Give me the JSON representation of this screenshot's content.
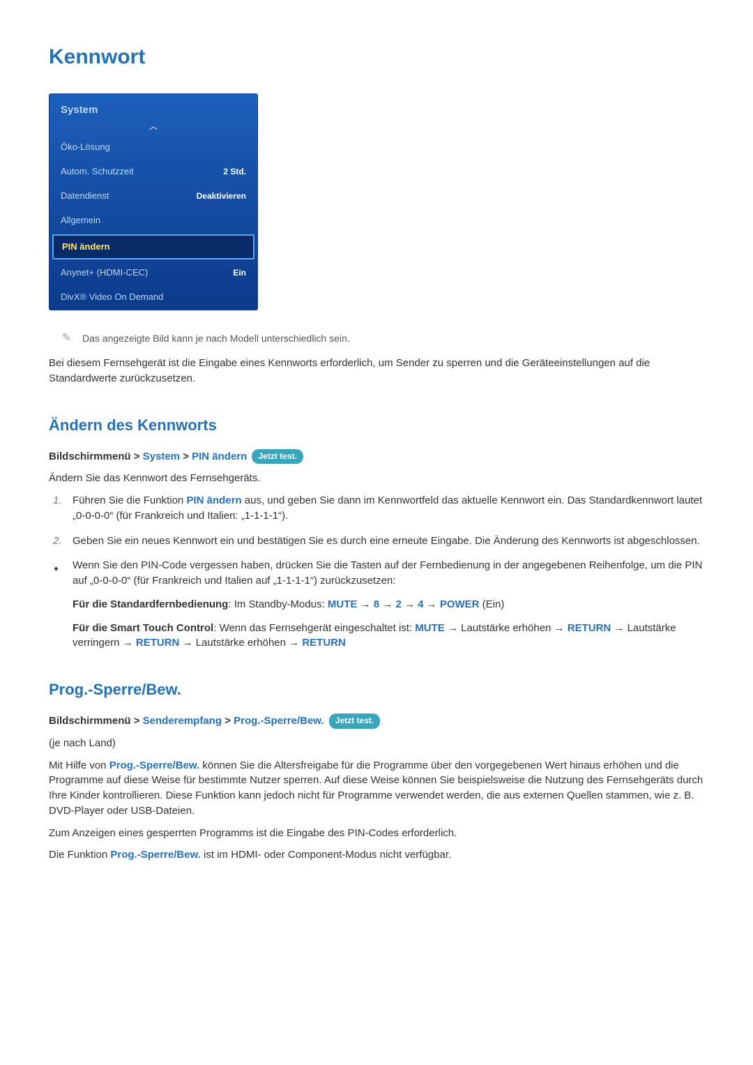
{
  "title": "Kennwort",
  "menu": {
    "header": "System",
    "rows": [
      {
        "label": "Öko-Lösung",
        "value": "",
        "selected": false
      },
      {
        "label": "Autom. Schutzzeit",
        "value": "2 Std.",
        "selected": false
      },
      {
        "label": "Datendienst",
        "value": "Deaktivieren",
        "selected": false
      },
      {
        "label": "Allgemein",
        "value": "",
        "selected": false
      },
      {
        "label": "PIN ändern",
        "value": "",
        "selected": true
      },
      {
        "label": "Anynet+ (HDMI-CEC)",
        "value": "Ein",
        "selected": false
      },
      {
        "label": "DivX® Video On Demand",
        "value": "",
        "selected": false
      }
    ]
  },
  "note_image": "Das angezeigte Bild kann je nach Modell unterschiedlich sein.",
  "intro_para": "Bei diesem Fernsehgerät ist die Eingabe eines Kennworts erforderlich, um Sender zu sperren und die Geräteeinstellungen auf die Standardwerte zurückzusetzen.",
  "section1": {
    "title": "Ändern des Kennworts",
    "path_prefix": "Bildschirmmenü",
    "path_parts": [
      "System",
      "PIN ändern"
    ],
    "badge": "Jetzt test.",
    "lead": "Ändern Sie das Kennwort des Fernsehgeräts.",
    "step1_pre": "Führen Sie die Funktion ",
    "step1_kw": "PIN ändern",
    "step1_post": " aus, und geben Sie dann im Kennwortfeld das aktuelle Kennwort ein. Das Standardkennwort lautet „0-0-0-0“ (für Frankreich und Italien: „1-1-1-1“).",
    "step2": "Geben Sie ein neues Kennwort ein und bestätigen Sie es durch eine erneute Eingabe. Die Änderung des Kennworts ist abgeschlossen.",
    "bullet": "Wenn Sie den PIN-Code vergessen haben, drücken Sie die Tasten auf der Fernbedienung in der angegebenen Reihenfolge, um die PIN auf „0-0-0-0“ (für Frankreich und Italien auf „1-1-1-1“) zurückzusetzen:",
    "remote_std": {
      "label": "Für die Standardfernbedienung",
      "mid": ": Im Standby-Modus: ",
      "keys": [
        "MUTE",
        "8",
        "2",
        "4",
        "POWER"
      ],
      "tail": " (Ein)"
    },
    "remote_smart": {
      "label": "Für die Smart Touch Control",
      "mid": ": Wenn das Fernsehgerät eingeschaltet ist: ",
      "k1": "MUTE",
      "t1": " → Lautstärke erhöhen → ",
      "k2": "RETURN",
      "t2": " → Lautstärke verringern → ",
      "k3": "RETURN",
      "t3": " → Lautstärke erhöhen → ",
      "k4": "RETURN"
    }
  },
  "section2": {
    "title": "Prog.-Sperre/Bew.",
    "path_prefix": "Bildschirmmenü",
    "path_parts": [
      "Senderempfang",
      "Prog.-Sperre/Bew."
    ],
    "badge": "Jetzt test.",
    "sub": "(je nach Land)",
    "p1_pre": "Mit Hilfe von ",
    "p1_kw": "Prog.-Sperre/Bew.",
    "p1_post": " können Sie die Altersfreigabe für die Programme über den vorgegebenen Wert hinaus erhöhen und die Programme auf diese Weise für bestimmte Nutzer sperren. Auf diese Weise können Sie beispielsweise die Nutzung des Fernsehgeräts durch Ihre Kinder kontrollieren. Diese Funktion kann jedoch nicht für Programme verwendet werden, die aus externen Quellen stammen, wie z. B. DVD-Player oder USB-Dateien.",
    "p2": "Zum Anzeigen eines gesperrten Programms ist die Eingabe des PIN-Codes erforderlich.",
    "p3_pre": "Die Funktion ",
    "p3_kw": "Prog.-Sperre/Bew.",
    "p3_post": " ist im HDMI- oder Component-Modus nicht verfügbar."
  },
  "sep": " > ",
  "arrow": " → "
}
